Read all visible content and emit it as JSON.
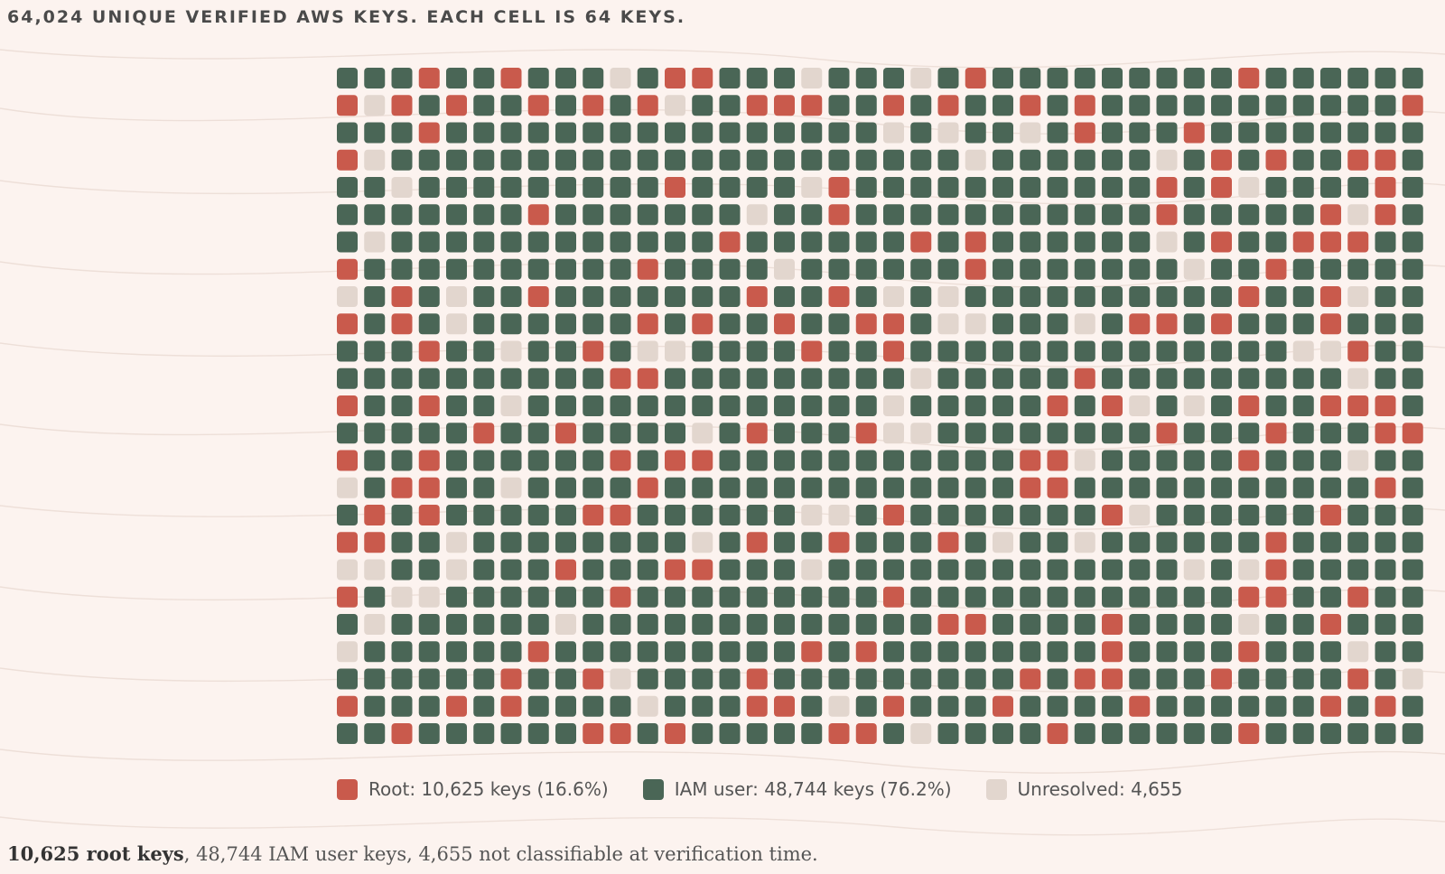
{
  "title": "64,024 UNIQUE VERIFIED AWS KEYS. EACH CELL IS 64 KEYS.",
  "legend": {
    "root": "Root: 10,625 keys (16.6%)",
    "iam": "IAM user: 48,744 keys (76.2%)",
    "unresolved": "Unresolved: 4,655"
  },
  "caption": {
    "bold": "10,625 root keys",
    "rest": ", 48,744 IAM user keys, 4,655 not classifiable at verification time."
  },
  "colors": {
    "root": "#c95a4c",
    "iam": "#4a6656",
    "unresolved": "#e2d6ce",
    "background": "#fcf3ef"
  },
  "chart_data": {
    "type": "waffle",
    "title": "64,024 UNIQUE VERIFIED AWS KEYS. EACH CELL IS 64 KEYS.",
    "unit_per_cell": 64,
    "total": 64024,
    "columns": 40,
    "rows": 25,
    "series": [
      {
        "name": "Root",
        "value": 10625,
        "percent": 16.6,
        "color": "#c95a4c"
      },
      {
        "name": "IAM user",
        "value": 48744,
        "percent": 76.2,
        "color": "#4a6656"
      },
      {
        "name": "Unresolved",
        "value": 4655,
        "color": "#e2d6ce"
      }
    ],
    "grid": [
      "IIIRIIRIIIUIRRIIIUIIIUIRIIIIIIIIIRIIIIII",
      "RURIRIIRIRIRUIIRRRIIRIRIIRIRIIIIIIIIIIIR",
      "IIIRIIIIIIIIIIIIIIIIUIUIIUIRIIIRIIIIIIII",
      "RUIIIIIIIIIIIIIIIIIIIIIUIIIIIIUIRIRIIRRI",
      "IIUIIIIIIIIIRIIIIURIIIIIIIIIIIRIRUIIIIRI",
      "IIIIIIIRIIIIIIIUIIRIIIIIIIIIIIRIIIIIRURI",
      "IUIIIIIIIIIIIIRIIIIIIRIRIIIIIIUIRIIRRRII",
      "RIIIIIIIIIIRIIIIUIIIIIIRIIIIIIIUIIRIIIII",
      "UIRIUIIRIIIIIIIRIIRIUIUIIIIIIIIIIRIIRUII",
      "RIRIUIIIIIIRIRIIRIIRRIUUIIIUIRRIRIIIRIII",
      "IIIRIIUIIRIUUIIIIRIIRIIIIIIIIIIIIIIUURII",
      "IIIIIIIIIIRRIIIIIIIIIUIIIIIRIIIIIIIIIUII",
      "RIIRIIUIIIIIIIIIIIIIUIIIIIRIRUIUIRIIRRRI",
      "IIIIIRIIRIIIIUIRIIIRUUIIIIIIIIRIIIRIIIRR",
      "RIIRIIIIIIRIRRIIIIIIIIIIIRRUIIIIIRIIIUII",
      "UIRRIIUIIIIRIIIIIIIIIIIIIRRIIIIIIIIIIIRI",
      "IRIRIIIIIRRIIIIIIUUIRIIIIIIIRUIIIIIIRIII",
      "RRIIUIIIIIIIIUIRIIRIIIRIUIIUIIIIIIRIIIII",
      "UUIIUIIIRIIIRRIIIUIIIIIIIIIIIIIUIURIIIII",
      "RIUUIIIIIIRIIIIIIIIIRIIIIIIIIIIIIRRIIRII",
      "IUIIIIIIUIIIIIIIIIIIIIRRIIIIRIIIIUIIRIII",
      "UIIIIIIRIIIIIIIIIRIRIIIIIIIIRIIIIRIIIUII",
      "IIIIIIRIIRUIIIIRIIIIIIIIIRIRRIIIRIIIIRIU",
      "RIIIRIRIIIIUIIIRRIUIRIIIRIIIIRIIIIIIRIRI",
      "IIRIIIIIIRRIRIIIIIRRIUIIIIRIIIIIIRIIIIII"
    ]
  }
}
